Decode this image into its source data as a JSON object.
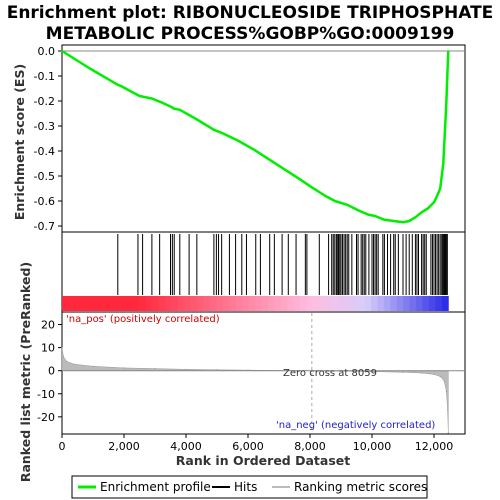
{
  "chart_data": {
    "type": "line",
    "title_line1": "Enrichment plot: RIBONUCLEOSIDE TRIPHOSPHATE",
    "title_line2": "METABOLIC PROCESS%GOBP%GO:0009199",
    "es_panel": {
      "ylabel": "Enrichment score (ES)",
      "ylim": [
        -0.72,
        0.02
      ],
      "yticks": [
        0.0,
        -0.1,
        -0.2,
        -0.3,
        -0.4,
        -0.5,
        -0.6,
        -0.7
      ],
      "ytick_labels": [
        "0.0",
        "-0.1",
        "-0.2",
        "-0.3",
        "-0.4",
        "-0.5",
        "-0.6",
        "-0.7"
      ],
      "zero_line": true,
      "color": "#00ee00",
      "series": [
        {
          "x": 0,
          "y": 0.0
        },
        {
          "x": 900,
          "y": -0.07
        },
        {
          "x": 1800,
          "y": -0.135
        },
        {
          "x": 1900,
          "y": -0.14
        },
        {
          "x": 2500,
          "y": -0.18
        },
        {
          "x": 2900,
          "y": -0.19
        },
        {
          "x": 3200,
          "y": -0.205
        },
        {
          "x": 3550,
          "y": -0.225
        },
        {
          "x": 3600,
          "y": -0.23
        },
        {
          "x": 3800,
          "y": -0.235
        },
        {
          "x": 4300,
          "y": -0.27
        },
        {
          "x": 4900,
          "y": -0.315
        },
        {
          "x": 5200,
          "y": -0.33
        },
        {
          "x": 5700,
          "y": -0.36
        },
        {
          "x": 6200,
          "y": -0.395
        },
        {
          "x": 6700,
          "y": -0.435
        },
        {
          "x": 7200,
          "y": -0.475
        },
        {
          "x": 7700,
          "y": -0.515
        },
        {
          "x": 8059,
          "y": -0.545
        },
        {
          "x": 8500,
          "y": -0.58
        },
        {
          "x": 8800,
          "y": -0.6
        },
        {
          "x": 9200,
          "y": -0.615
        },
        {
          "x": 9600,
          "y": -0.64
        },
        {
          "x": 9900,
          "y": -0.655
        },
        {
          "x": 10100,
          "y": -0.66
        },
        {
          "x": 10400,
          "y": -0.675
        },
        {
          "x": 10700,
          "y": -0.68
        },
        {
          "x": 11000,
          "y": -0.685
        },
        {
          "x": 11200,
          "y": -0.68
        },
        {
          "x": 11400,
          "y": -0.665
        },
        {
          "x": 11600,
          "y": -0.645
        },
        {
          "x": 11800,
          "y": -0.63
        },
        {
          "x": 12000,
          "y": -0.605
        },
        {
          "x": 12100,
          "y": -0.58
        },
        {
          "x": 12200,
          "y": -0.55
        },
        {
          "x": 12300,
          "y": -0.45
        },
        {
          "x": 12350,
          "y": -0.33
        },
        {
          "x": 12400,
          "y": -0.2
        },
        {
          "x": 12430,
          "y": -0.1
        },
        {
          "x": 12460,
          "y": 0.0
        }
      ]
    },
    "hits": [
      1800,
      2450,
      2600,
      2900,
      3150,
      3500,
      3560,
      3620,
      3800,
      4100,
      4350,
      4900,
      4980,
      5050,
      5150,
      5400,
      5600,
      5800,
      5950,
      6250,
      6400,
      6700,
      6850,
      7100,
      7300,
      7550,
      7850,
      7900,
      8300,
      8600,
      8700,
      8750,
      8800,
      8850,
      8880,
      8920,
      8960,
      9000,
      9050,
      9100,
      9150,
      9200,
      9250,
      9350,
      9500,
      9550,
      9650,
      9700,
      9750,
      9800,
      9900,
      10000,
      10050,
      10100,
      10150,
      10200,
      10350,
      10400,
      10500,
      10600,
      10700,
      10750,
      10850,
      11000,
      11100,
      11200,
      11300,
      11400,
      11450,
      11500,
      11600,
      11650,
      11700,
      11750,
      11900,
      11950,
      12000,
      12050,
      12100,
      12150,
      12200,
      12250,
      12280,
      12310,
      12340,
      12370,
      12400,
      12430
    ],
    "metric_panel": {
      "ylabel": "Ranked list metric (PreRanked)",
      "xlabel": "Rank in Ordered Dataset",
      "ylim": [
        -27,
        25
      ],
      "yticks": [
        20,
        10,
        0,
        -10,
        -20
      ],
      "ytick_labels": [
        "20",
        "10",
        "0",
        "-10",
        "-20"
      ],
      "xlim": [
        0,
        13000
      ],
      "xticks": [
        0,
        2000,
        4000,
        6000,
        8000,
        10000,
        12000
      ],
      "xtick_labels": [
        "0",
        "2,000",
        "4,000",
        "6,000",
        "8,000",
        "10,000",
        "12,000"
      ],
      "curve": [
        {
          "x": 0,
          "y": 10
        },
        {
          "x": 50,
          "y": 6
        },
        {
          "x": 150,
          "y": 4
        },
        {
          "x": 400,
          "y": 2.8
        },
        {
          "x": 1000,
          "y": 1.9
        },
        {
          "x": 2000,
          "y": 1.2
        },
        {
          "x": 3000,
          "y": 0.9
        },
        {
          "x": 4000,
          "y": 0.6
        },
        {
          "x": 5000,
          "y": 0.4
        },
        {
          "x": 6000,
          "y": 0.25
        },
        {
          "x": 7000,
          "y": 0.1
        },
        {
          "x": 8059,
          "y": 0.0
        },
        {
          "x": 9000,
          "y": -0.2
        },
        {
          "x": 10000,
          "y": -0.4
        },
        {
          "x": 11000,
          "y": -0.7
        },
        {
          "x": 11600,
          "y": -1.0
        },
        {
          "x": 12000,
          "y": -1.6
        },
        {
          "x": 12200,
          "y": -2.5
        },
        {
          "x": 12330,
          "y": -4.5
        },
        {
          "x": 12400,
          "y": -9
        },
        {
          "x": 12440,
          "y": -17
        },
        {
          "x": 12460,
          "y": -27
        }
      ],
      "zero_cross_rank": 8059,
      "zero_cross_label": "Zero cross at 8059",
      "pos_label": "'na_pos' (positively correlated)",
      "neg_label": "'na_neg' (negatively correlated)",
      "pos_label_color": "#d00000",
      "neg_label_color": "#2020d0"
    },
    "n_genes": 12460,
    "legend": [
      {
        "label": "Enrichment profile",
        "color": "#00ee00",
        "kind": "line"
      },
      {
        "label": "Hits",
        "color": "#000000",
        "kind": "line"
      },
      {
        "label": "Ranking metric scores",
        "color": "#bbbbbb",
        "kind": "line"
      }
    ]
  }
}
